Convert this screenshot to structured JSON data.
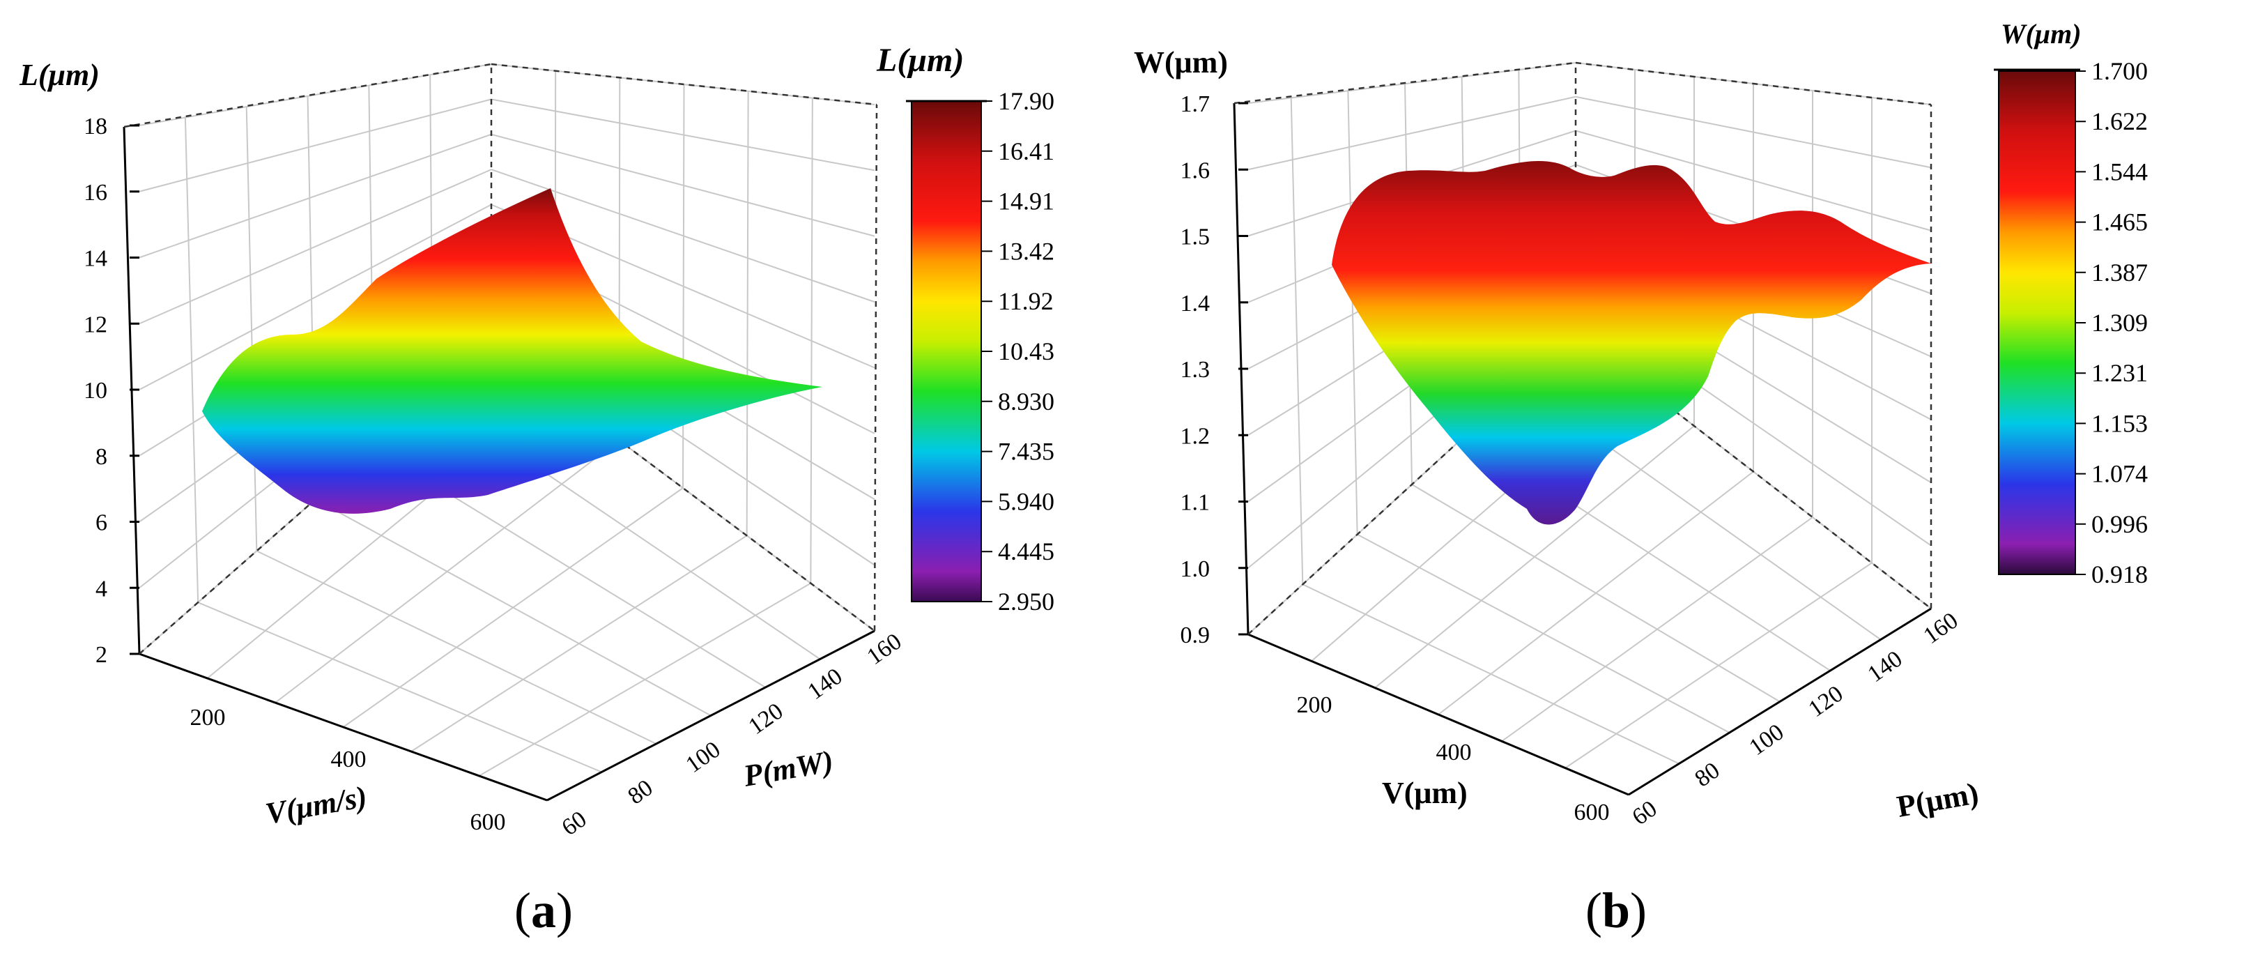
{
  "chart_data": [
    {
      "type": "surface3d",
      "panel": "a",
      "zlabel": "L(μm)",
      "xlabel": "V(μm/s)",
      "ylabel": "P(mW)",
      "zlim": [
        2,
        18
      ],
      "z_ticks": [
        "2",
        "4",
        "6",
        "8",
        "10",
        "12",
        "14",
        "16",
        "18"
      ],
      "x_ticks": [
        "200",
        "400",
        "600"
      ],
      "y_ticks": [
        "60",
        "80",
        "100",
        "120",
        "140",
        "160"
      ],
      "colorbar": {
        "title": "L(μm)",
        "range": [
          2.95,
          17.9
        ],
        "ticks": [
          "17.90",
          "16.41",
          "14.91",
          "13.42",
          "11.92",
          "10.43",
          "8.930",
          "7.435",
          "5.940",
          "4.445",
          "2.950"
        ]
      },
      "surface_range": [
        5.8,
        17.3
      ],
      "caption": {
        "open": "(",
        "letter": "a",
        "close": ")"
      }
    },
    {
      "type": "surface3d",
      "panel": "b",
      "zlabel": "W(μm)",
      "xlabel": "V(μm)",
      "ylabel": "P(μm)",
      "zlim": [
        0.9,
        1.7
      ],
      "z_ticks": [
        "0.9",
        "1.0",
        "1.1",
        "1.2",
        "1.3",
        "1.4",
        "1.5",
        "1.6",
        "1.7"
      ],
      "x_ticks": [
        "200",
        "400",
        "600"
      ],
      "y_ticks": [
        "60",
        "80",
        "100",
        "120",
        "140",
        "160"
      ],
      "colorbar": {
        "title": "W(μm)",
        "range": [
          0.918,
          1.7
        ],
        "ticks": [
          "1.700",
          "1.622",
          "1.544",
          "1.465",
          "1.387",
          "1.309",
          "1.231",
          "1.153",
          "1.074",
          "0.996",
          "0.918"
        ]
      },
      "surface_range": [
        1.05,
        1.62
      ],
      "caption": {
        "open": "(",
        "letter": "b",
        "close": ")"
      }
    }
  ]
}
